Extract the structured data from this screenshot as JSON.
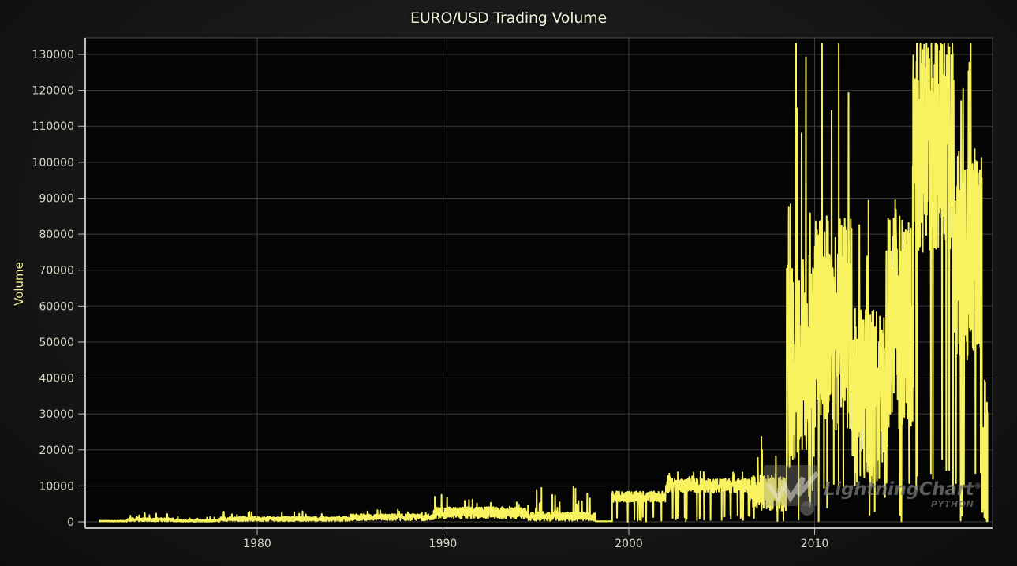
{
  "chart_data": {
    "type": "line",
    "title": "EURO/USD Trading Volume",
    "xlabel": "",
    "ylabel": "Volume",
    "xlim": [
      1971.3,
      2019.4
    ],
    "ylim": [
      -500,
      132000
    ],
    "x_ticks": [
      1980,
      1990,
      2000,
      2010
    ],
    "y_ticks": [
      0,
      10000,
      20000,
      30000,
      40000,
      50000,
      60000,
      70000,
      80000,
      90000,
      100000,
      110000,
      120000,
      130000
    ],
    "grid": true,
    "legend": "none",
    "series": [
      {
        "name": "Volume",
        "color": "#f7f25e",
        "approx_segments": [
          {
            "from": 1971.5,
            "to": 1973.0,
            "base": 200,
            "noise": 150,
            "spikes": 0
          },
          {
            "from": 1973.0,
            "to": 1975.5,
            "base": 600,
            "noise": 500,
            "spikes": 2500
          },
          {
            "from": 1975.5,
            "to": 1978.0,
            "base": 300,
            "noise": 300,
            "spikes": 1500
          },
          {
            "from": 1978.0,
            "to": 1985.0,
            "base": 800,
            "noise": 600,
            "spikes": 3000
          },
          {
            "from": 1985.0,
            "to": 1989.5,
            "base": 1300,
            "noise": 900,
            "spikes": 3500
          },
          {
            "from": 1989.5,
            "to": 1994.5,
            "base": 2500,
            "noise": 1600,
            "spikes": 8000
          },
          {
            "from": 1994.5,
            "to": 1998.2,
            "base": 1500,
            "noise": 1200,
            "spikes": 10000
          },
          {
            "from": 1998.2,
            "to": 1999.1,
            "base": 150,
            "noise": 50,
            "spikes": 0
          },
          {
            "from": 1999.1,
            "to": 2002.0,
            "base": 7000,
            "noise": 1500,
            "spikes": 0,
            "dips": true
          },
          {
            "from": 2002.0,
            "to": 2006.5,
            "base": 10000,
            "noise": 2000,
            "spikes": 14000,
            "dips": true
          },
          {
            "from": 2006.5,
            "to": 2008.5,
            "base": 8000,
            "noise": 5000,
            "spikes": 25000,
            "dips": true
          },
          {
            "from": 2008.5,
            "to": 2010.0,
            "base": 45000,
            "noise": 30000,
            "spikes": 133000,
            "dips": true
          },
          {
            "from": 2010.0,
            "to": 2012.0,
            "base": 55000,
            "noise": 30000,
            "spikes": 133000,
            "dips": true
          },
          {
            "from": 2012.0,
            "to": 2014.0,
            "base": 35000,
            "noise": 25000,
            "spikes": 90000,
            "dips": true
          },
          {
            "from": 2014.0,
            "to": 2015.3,
            "base": 55000,
            "noise": 30000,
            "spikes": 100000,
            "dips": true
          },
          {
            "from": 2015.3,
            "to": 2017.5,
            "base": 105000,
            "noise": 30000,
            "spikes": 133000,
            "dips": true
          },
          {
            "from": 2017.5,
            "to": 2019.0,
            "base": 75000,
            "noise": 30000,
            "spikes": 133000,
            "dips": true
          },
          {
            "from": 2019.0,
            "to": 2019.3,
            "base": 20000,
            "noise": 20000,
            "spikes": 0,
            "dips": true
          }
        ],
        "notable_points": [
          {
            "x": 1995.3,
            "y": 9500
          },
          {
            "x": 1998.2,
            "y": 200
          },
          {
            "x": 1999.1,
            "y": 7000
          },
          {
            "x": 2009.0,
            "y": 133000
          },
          {
            "x": 2009.3,
            "y": 108000
          },
          {
            "x": 2010.4,
            "y": 133000
          },
          {
            "x": 2011.3,
            "y": 133000
          },
          {
            "x": 2015.5,
            "y": 133000
          },
          {
            "x": 2018.4,
            "y": 133000
          },
          {
            "x": 2019.3,
            "y": 0
          }
        ]
      }
    ]
  },
  "plot": {
    "title": "EURO/USD Trading Volume",
    "y_axis_title": "Volume",
    "y_tick_labels": [
      "0",
      "10000",
      "20000",
      "30000",
      "40000",
      "50000",
      "60000",
      "70000",
      "80000",
      "90000",
      "100000",
      "110000",
      "120000",
      "130000"
    ],
    "x_tick_labels": [
      "1980",
      "1990",
      "2000",
      "2010"
    ],
    "colors": {
      "line": "#f7f25e",
      "plot_bg": "#050505",
      "grid": "#3a3a3a",
      "axis": "#bdbdbd",
      "title": "#f2f0d8",
      "y_axis_title": "#f0eb9a",
      "tick_text": "#d9d7c6"
    }
  },
  "watermark": {
    "brand": "LightningChart",
    "registered": "®",
    "sub": "PYTHON"
  }
}
